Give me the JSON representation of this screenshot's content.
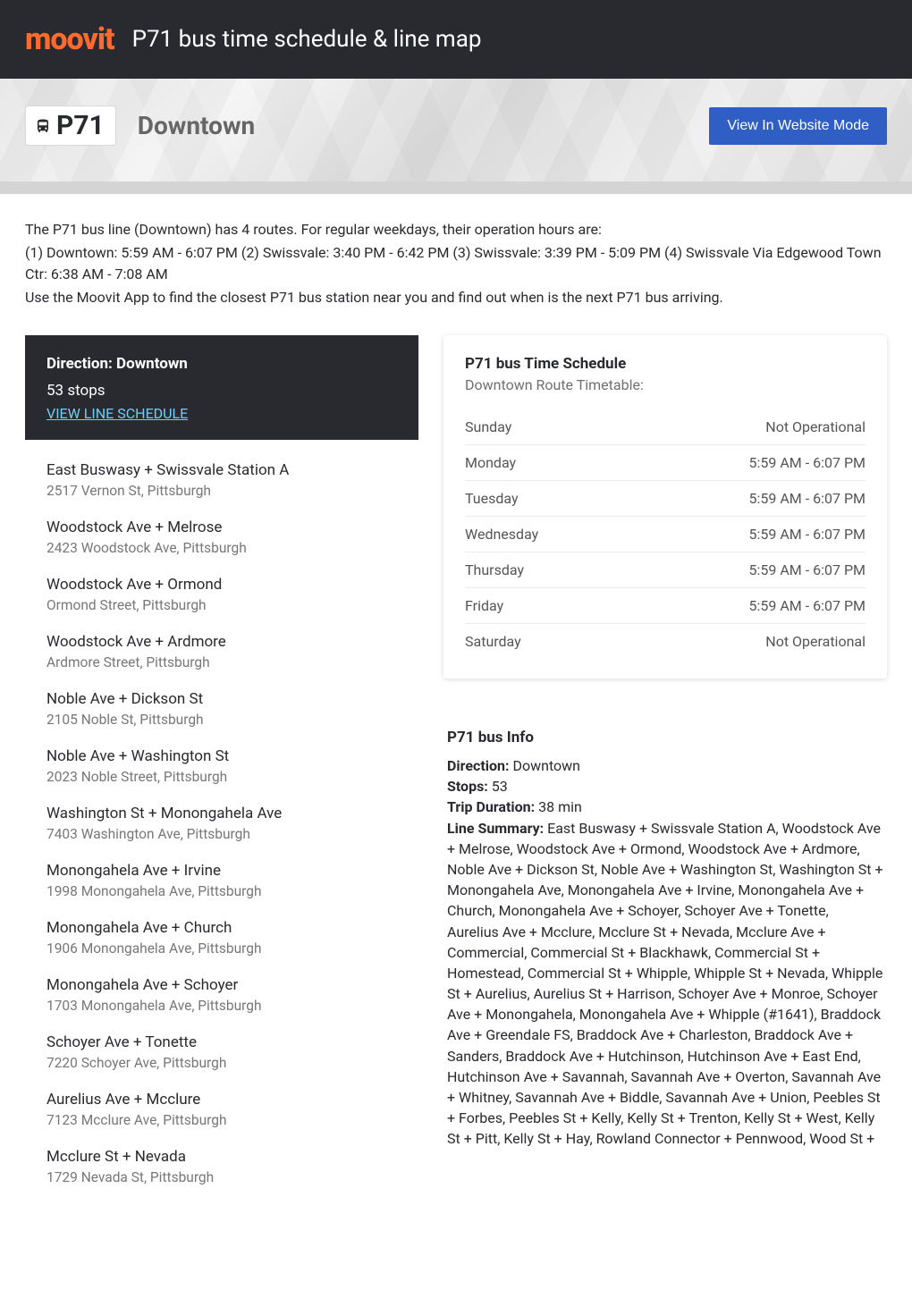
{
  "colors": {
    "header_bg": "#292a30",
    "logo": "#ff6a2e",
    "header_text": "#ffffff",
    "btn_bg": "#2f5ec4",
    "link": "#6dcff6",
    "muted": "#777777",
    "border": "#ececec"
  },
  "header": {
    "logo_text": "moovit",
    "title": "P71 bus time schedule & line map"
  },
  "hero": {
    "route_number": "P71",
    "route_name": "Downtown",
    "button_label": "View In Website Mode"
  },
  "intro": {
    "line1": "The P71 bus line (Downtown) has 4 routes. For regular weekdays, their operation hours are:",
    "line2": "(1) Downtown: 5:59 AM - 6:07 PM (2) Swissvale: 3:40 PM - 6:42 PM (3) Swissvale: 3:39 PM - 5:09 PM (4) Swissvale Via Edgewood Town Ctr: 6:38 AM - 7:08 AM",
    "line3": "Use the Moovit App to find the closest P71 bus station near you and find out when is the next P71 bus arriving."
  },
  "direction_card": {
    "title": "Direction: Downtown",
    "stop_count": "53 stops",
    "link_label": "VIEW LINE SCHEDULE"
  },
  "stops": [
    {
      "name": "East Buswasy + Swissvale Station A",
      "addr": "2517 Vernon St, Pittsburgh"
    },
    {
      "name": "Woodstock Ave + Melrose",
      "addr": "2423 Woodstock Ave, Pittsburgh"
    },
    {
      "name": "Woodstock Ave + Ormond",
      "addr": "Ormond Street, Pittsburgh"
    },
    {
      "name": "Woodstock Ave + Ardmore",
      "addr": "Ardmore Street, Pittsburgh"
    },
    {
      "name": "Noble Ave + Dickson St",
      "addr": "2105 Noble St, Pittsburgh"
    },
    {
      "name": "Noble Ave + Washington St",
      "addr": "2023 Noble Street, Pittsburgh"
    },
    {
      "name": "Washington St + Monongahela Ave",
      "addr": "7403 Washington Ave, Pittsburgh"
    },
    {
      "name": "Monongahela Ave + Irvine",
      "addr": "1998 Monongahela Ave, Pittsburgh"
    },
    {
      "name": "Monongahela Ave + Church",
      "addr": "1906 Monongahela Ave, Pittsburgh"
    },
    {
      "name": "Monongahela Ave + Schoyer",
      "addr": "1703 Monongahela Ave, Pittsburgh"
    },
    {
      "name": "Schoyer Ave + Tonette",
      "addr": "7220 Schoyer Ave, Pittsburgh"
    },
    {
      "name": "Aurelius Ave + Mcclure",
      "addr": "7123 Mcclure Ave, Pittsburgh"
    },
    {
      "name": "Mcclure St + Nevada",
      "addr": "1729 Nevada St, Pittsburgh"
    }
  ],
  "schedule": {
    "title": "P71 bus Time Schedule",
    "subtitle": "Downtown Route Timetable:",
    "rows": [
      {
        "day": "Sunday",
        "hours": "Not Operational"
      },
      {
        "day": "Monday",
        "hours": "5:59 AM - 6:07 PM"
      },
      {
        "day": "Tuesday",
        "hours": "5:59 AM - 6:07 PM"
      },
      {
        "day": "Wednesday",
        "hours": "5:59 AM - 6:07 PM"
      },
      {
        "day": "Thursday",
        "hours": "5:59 AM - 6:07 PM"
      },
      {
        "day": "Friday",
        "hours": "5:59 AM - 6:07 PM"
      },
      {
        "day": "Saturday",
        "hours": "Not Operational"
      }
    ]
  },
  "info": {
    "title": "P71 bus Info",
    "direction_label": "Direction:",
    "direction_value": " Downtown",
    "stops_label": "Stops:",
    "stops_value": " 53",
    "duration_label": "Trip Duration:",
    "duration_value": " 38 min",
    "summary_label": "Line Summary:",
    "summary_value": " East Buswasy + Swissvale Station A, Woodstock Ave + Melrose, Woodstock Ave + Ormond, Woodstock Ave + Ardmore, Noble Ave + Dickson St, Noble Ave + Washington St, Washington St + Monongahela Ave, Monongahela Ave + Irvine, Monongahela Ave + Church, Monongahela Ave + Schoyer, Schoyer Ave + Tonette, Aurelius Ave + Mcclure, Mcclure St + Nevada, Mcclure Ave + Commercial, Commercial St + Blackhawk, Commercial St + Homestead, Commercial St + Whipple, Whipple St + Nevada, Whipple St + Aurelius, Aurelius St + Harrison, Schoyer Ave + Monroe, Schoyer Ave + Monongahela, Monongahela Ave + Whipple (#1641), Braddock Ave + Greendale FS, Braddock Ave + Charleston, Braddock Ave + Sanders, Braddock Ave + Hutchinson, Hutchinson Ave + East End, Hutchinson Ave + Savannah, Savannah Ave + Overton, Savannah Ave + Whitney, Savannah Ave + Biddle, Savannah Ave + Union, Peebles St + Forbes, Peebles St + Kelly, Kelly St + Trenton, Kelly St + West, Kelly St + Pitt, Kelly St + Hay, Rowland Connector + Pennwood, Wood St +"
  }
}
